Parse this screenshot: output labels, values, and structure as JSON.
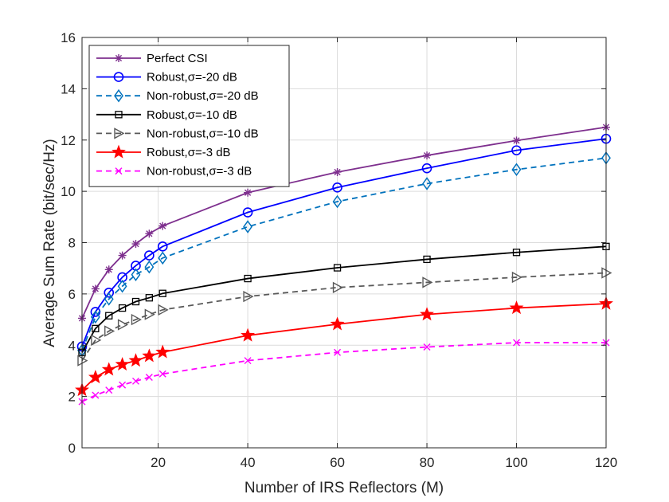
{
  "chart_data": {
    "type": "line",
    "xlabel": "Number of IRS Reflectors (M)",
    "ylabel": "Average Sum Rate (bit/sec/Hz)",
    "xlim": [
      3,
      120
    ],
    "ylim": [
      0,
      16
    ],
    "xticks": [
      20,
      40,
      60,
      80,
      100,
      120
    ],
    "yticks": [
      0,
      2,
      4,
      6,
      8,
      10,
      12,
      14,
      16
    ],
    "grid": true,
    "legend_position": "top-left",
    "x": [
      3,
      6,
      9,
      12,
      15,
      18,
      21,
      40,
      60,
      80,
      100,
      120
    ],
    "series": [
      {
        "name": "Perfect CSI",
        "color": "#7E2F8E",
        "marker": "asterisk",
        "dash": "solid",
        "values": [
          5.05,
          6.2,
          6.95,
          7.5,
          7.95,
          8.35,
          8.65,
          9.95,
          10.75,
          11.4,
          11.98,
          12.5
        ]
      },
      {
        "name": "Robust,σ=-20 dB",
        "color": "#0000FF",
        "marker": "circle",
        "dash": "solid",
        "values": [
          3.95,
          5.3,
          6.05,
          6.65,
          7.1,
          7.5,
          7.85,
          9.18,
          10.15,
          10.9,
          11.6,
          12.05
        ]
      },
      {
        "name": "Non-robust,σ=-20 dB",
        "color": "#0072BD",
        "marker": "diamond",
        "dash": "dashed",
        "values": [
          3.8,
          5.1,
          5.8,
          6.3,
          6.75,
          7.05,
          7.4,
          8.62,
          9.6,
          10.3,
          10.85,
          11.3
        ]
      },
      {
        "name": "Robust,σ=-10 dB",
        "color": "#000000",
        "marker": "square",
        "dash": "solid",
        "values": [
          3.72,
          4.65,
          5.15,
          5.45,
          5.7,
          5.85,
          6.02,
          6.6,
          7.02,
          7.35,
          7.62,
          7.85
        ]
      },
      {
        "name": "Non-robust,σ=-10 dB",
        "color": "#595959",
        "marker": "triangle-right",
        "dash": "dashed",
        "values": [
          3.4,
          4.2,
          4.55,
          4.8,
          5.0,
          5.2,
          5.38,
          5.9,
          6.25,
          6.45,
          6.65,
          6.82
        ]
      },
      {
        "name": "Robust,σ=-3 dB",
        "color": "#FF0000",
        "marker": "star",
        "dash": "solid",
        "values": [
          2.25,
          2.75,
          3.05,
          3.25,
          3.4,
          3.58,
          3.73,
          4.38,
          4.82,
          5.2,
          5.45,
          5.62
        ]
      },
      {
        "name": "Non-robust,σ=-3 dB",
        "color": "#FF00FF",
        "marker": "x",
        "dash": "dashed",
        "values": [
          1.8,
          2.05,
          2.25,
          2.45,
          2.6,
          2.75,
          2.88,
          3.4,
          3.72,
          3.93,
          4.1,
          4.1
        ]
      }
    ]
  }
}
